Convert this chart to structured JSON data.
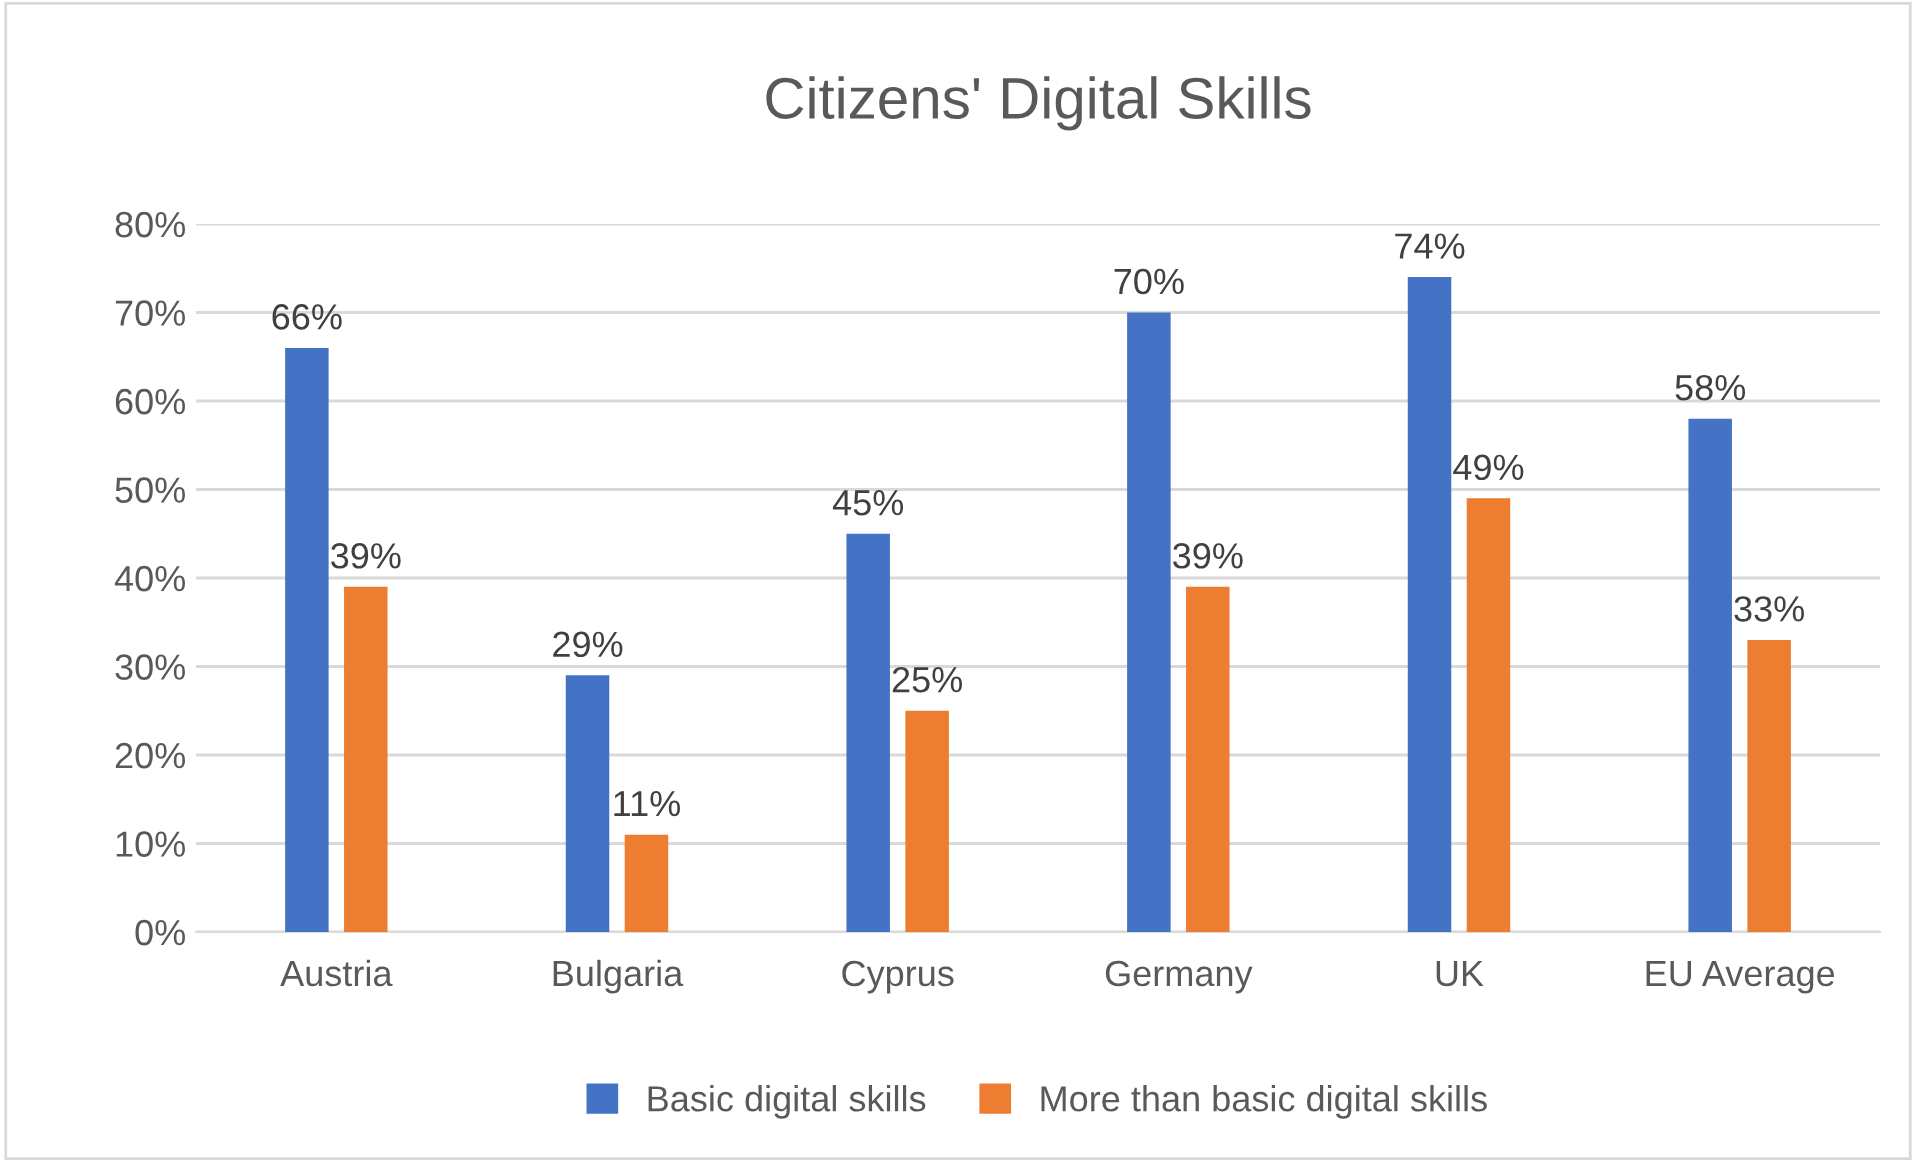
{
  "chart_data": {
    "type": "bar",
    "title": "Citizens' Digital Skills",
    "categories": [
      "Austria",
      "Bulgaria",
      "Cyprus",
      "Germany",
      "UK",
      "EU Average"
    ],
    "series": [
      {
        "name": "Basic digital skills",
        "color": "#4472c4",
        "values": [
          66,
          29,
          45,
          70,
          74,
          58
        ],
        "value_labels": [
          "66%",
          "29%",
          "45%",
          "70%",
          "74%",
          "58%"
        ]
      },
      {
        "name": "More than basic digital skills",
        "color": "#ed7d31",
        "values": [
          39,
          11,
          25,
          39,
          49,
          33
        ],
        "value_labels": [
          "39%",
          "11%",
          "25%",
          "39%",
          "49%",
          "33%"
        ]
      }
    ],
    "ylim": [
      0,
      80
    ],
    "yticks": [
      {
        "value": 0,
        "label": "0%"
      },
      {
        "value": 10,
        "label": "10%"
      },
      {
        "value": 20,
        "label": "20%"
      },
      {
        "value": 30,
        "label": "30%"
      },
      {
        "value": 40,
        "label": "40%"
      },
      {
        "value": 50,
        "label": "50%"
      },
      {
        "value": 60,
        "label": "60%"
      },
      {
        "value": 70,
        "label": "70%"
      },
      {
        "value": 80,
        "label": "80%"
      }
    ],
    "grid": "y",
    "legend": "bottom"
  }
}
